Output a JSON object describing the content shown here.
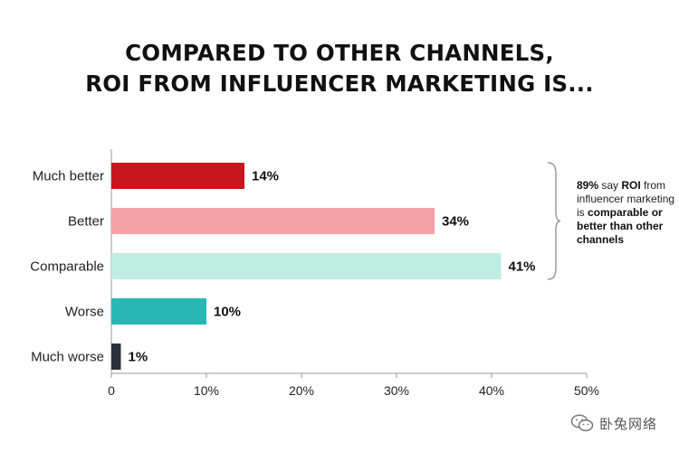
{
  "title_lines": [
    "COMPARED TO OTHER CHANNELS,",
    "ROI FROM INFLUENCER MARKETING IS..."
  ],
  "chart_data": {
    "type": "bar",
    "orientation": "horizontal",
    "categories": [
      "Much better",
      "Better",
      "Comparable",
      "Worse",
      "Much worse"
    ],
    "values": [
      14,
      34,
      41,
      10,
      1
    ],
    "value_labels": [
      "14%",
      "34%",
      "41%",
      "10%",
      "1%"
    ],
    "colors": [
      "#c8161d",
      "#f4a1a6",
      "#bfeee0",
      "#27b8b5",
      "#2a2f3a"
    ],
    "xlim": [
      0,
      50
    ],
    "x_ticks": [
      0,
      10,
      20,
      30,
      40,
      50
    ],
    "x_tick_labels": [
      "0",
      "10%",
      "20%",
      "30%",
      "40%",
      "50%"
    ],
    "grid": false
  },
  "annotation": {
    "prefix_bold": "89%",
    "text1": " say ",
    "bold1": "ROI",
    "text2": " from influencer marketing is ",
    "bold2": "comparable or better than other channels"
  },
  "watermark_text": "卧兔网络"
}
